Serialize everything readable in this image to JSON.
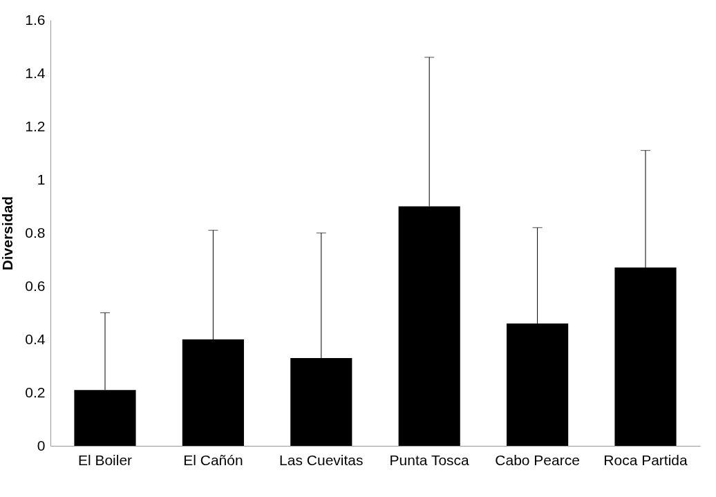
{
  "chart_data": {
    "type": "bar",
    "ylabel": "Diversidad",
    "categories": [
      "El Boiler",
      "El Cañón",
      "Las Cuevitas",
      "Punta Tosca",
      "Cabo Pearce",
      "Roca Partida"
    ],
    "values": [
      0.21,
      0.4,
      0.33,
      0.9,
      0.46,
      0.67
    ],
    "errors": [
      [
        0.21,
        0.5
      ],
      [
        0.4,
        0.81
      ],
      [
        0.33,
        0.8
      ],
      [
        0.9,
        1.46
      ],
      [
        0.46,
        0.82
      ],
      [
        0.67,
        1.11
      ]
    ],
    "color": "#000000",
    "ylim": [
      0,
      1.6
    ],
    "yticks": [
      0,
      0.2,
      0.4,
      0.6,
      0.8,
      1,
      1.2,
      1.4,
      1.6
    ],
    "grid": false
  }
}
